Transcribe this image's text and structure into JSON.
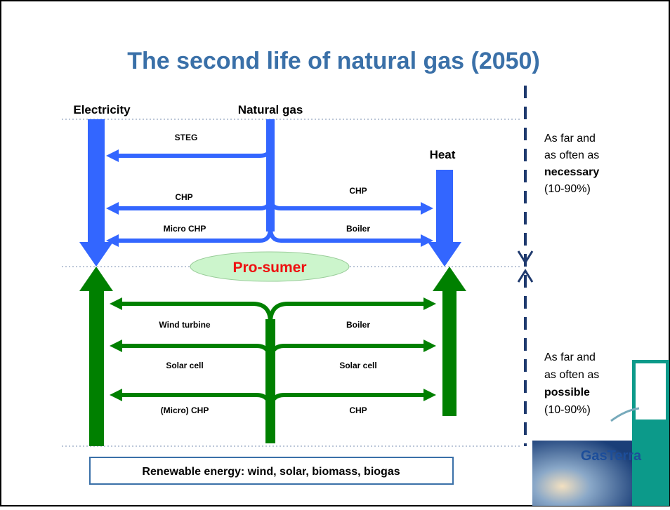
{
  "title": "The second life of natural gas (2050)",
  "headers": {
    "electricity": "Electricity",
    "natural_gas": "Natural gas",
    "heat": "Heat"
  },
  "prosumer": "Pro-sumer",
  "gas_flows": {
    "left": [
      "STEG",
      "CHP",
      "Micro CHP"
    ],
    "right": [
      "CHP",
      "Boiler"
    ]
  },
  "renewable_flows": {
    "left": [
      "Wind turbine",
      "Solar cell",
      "(Micro) CHP"
    ],
    "right": [
      "Boiler",
      "Solar cell",
      "CHP"
    ]
  },
  "notes": [
    {
      "lines": [
        "As far and",
        "as often as"
      ],
      "emphasis": "necessary",
      "range": "(10-90%)"
    },
    {
      "lines": [
        "As far and",
        "as often as"
      ],
      "emphasis": "possible",
      "range": "(10-90%)"
    }
  ],
  "footer": "Renewable energy: wind, solar, biomass, biogas",
  "logo": "GasTerra"
}
